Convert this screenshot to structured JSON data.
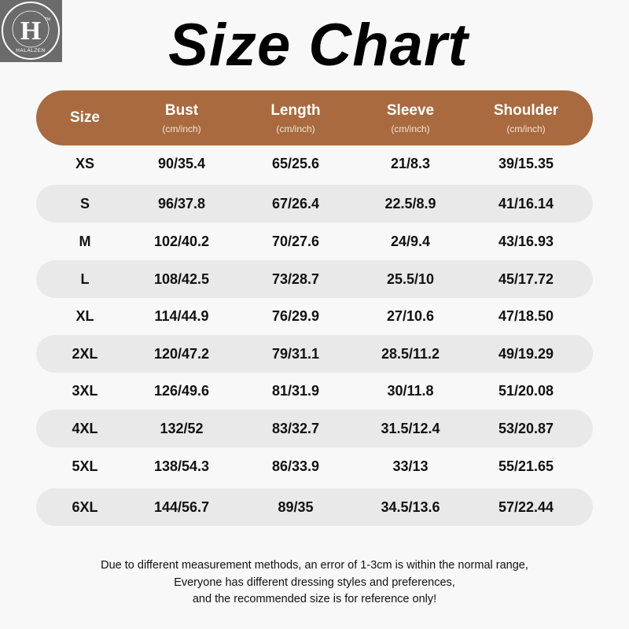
{
  "brand": {
    "name": "HALALZEN",
    "letter": "H",
    "mark": "TM"
  },
  "title": "Size Chart",
  "colors": {
    "header": "#a86a3e",
    "stripe": "#e9e9e9",
    "background": "#f8f8f8"
  },
  "columns": [
    {
      "label": "Size",
      "unit": ""
    },
    {
      "label": "Bust",
      "unit": "(cm/inch)"
    },
    {
      "label": "Length",
      "unit": "(cm/inch)"
    },
    {
      "label": "Sleeve",
      "unit": "(cm/inch)"
    },
    {
      "label": "Shoulder",
      "unit": "(cm/inch)"
    }
  ],
  "rows": [
    [
      "XS",
      "90/35.4",
      "65/25.6",
      "21/8.3",
      "39/15.35"
    ],
    [
      "S",
      "96/37.8",
      "67/26.4",
      "22.5/8.9",
      "41/16.14"
    ],
    [
      "M",
      "102/40.2",
      "70/27.6",
      "24/9.4",
      "43/16.93"
    ],
    [
      "L",
      "108/42.5",
      "73/28.7",
      "25.5/10",
      "45/17.72"
    ],
    [
      "XL",
      "114/44.9",
      "76/29.9",
      "27/10.6",
      "47/18.50"
    ],
    [
      "2XL",
      "120/47.2",
      "79/31.1",
      "28.5/11.2",
      "49/19.29"
    ],
    [
      "3XL",
      "126/49.6",
      "81/31.9",
      "30/11.8",
      "51/20.08"
    ],
    [
      "4XL",
      "132/52",
      "83/32.7",
      "31.5/12.4",
      "53/20.87"
    ],
    [
      "5XL",
      "138/54.3",
      "86/33.9",
      "33/13",
      "55/21.65"
    ],
    [
      "6XL",
      "144/56.7",
      "89/35",
      "34.5/13.6",
      "57/22.44"
    ]
  ],
  "notes": [
    "Due to different measurement methods, an error of 1-3cm is within the normal range,",
    "Everyone has different dressing styles and preferences,",
    "and the recommended size is for reference only!"
  ]
}
